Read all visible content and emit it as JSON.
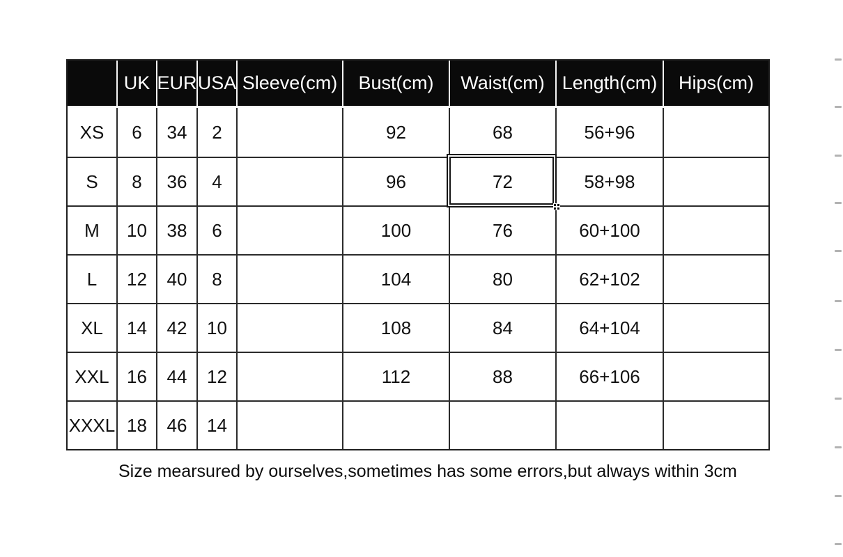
{
  "table": {
    "columns": [
      "",
      "UK",
      "EUR",
      "USA",
      "Sleeve(cm)",
      "Bust(cm)",
      "Waist(cm)",
      "Length(cm)",
      "Hips(cm)"
    ],
    "rows": [
      [
        "XS",
        "6",
        "34",
        "2",
        "",
        "92",
        "68",
        "56+96",
        ""
      ],
      [
        "S",
        "8",
        "36",
        "4",
        "",
        "96",
        "72",
        "58+98",
        ""
      ],
      [
        "M",
        "10",
        "38",
        "6",
        "",
        "100",
        "76",
        "60+100",
        ""
      ],
      [
        "L",
        "12",
        "40",
        "8",
        "",
        "104",
        "80",
        "62+102",
        ""
      ],
      [
        "XL",
        "14",
        "42",
        "10",
        "",
        "108",
        "84",
        "64+104",
        ""
      ],
      [
        "XXL",
        "16",
        "44",
        "12",
        "",
        "112",
        "88",
        "66+106",
        ""
      ],
      [
        "XXXL",
        "18",
        "46",
        "14",
        "",
        "",
        "",
        "",
        ""
      ]
    ],
    "selection": {
      "row_index": 1,
      "col_index": 6,
      "row_label": "S",
      "column": "Waist(cm)",
      "value": "72"
    }
  },
  "footer": {
    "note": "Size mearsured by ourselves,sometimes has some errors,but always within 3cm"
  },
  "colors": {
    "header_bg": "#0a0a0a",
    "header_text": "#ffffff",
    "grid_line": "#2b2b2b",
    "selection_border": "#151515",
    "edge_tick": "#b3b3b3"
  },
  "decorations": {
    "edge_ticks_y": [
      84,
      152,
      222,
      290,
      359,
      431,
      501,
      571,
      641,
      711,
      780
    ]
  }
}
